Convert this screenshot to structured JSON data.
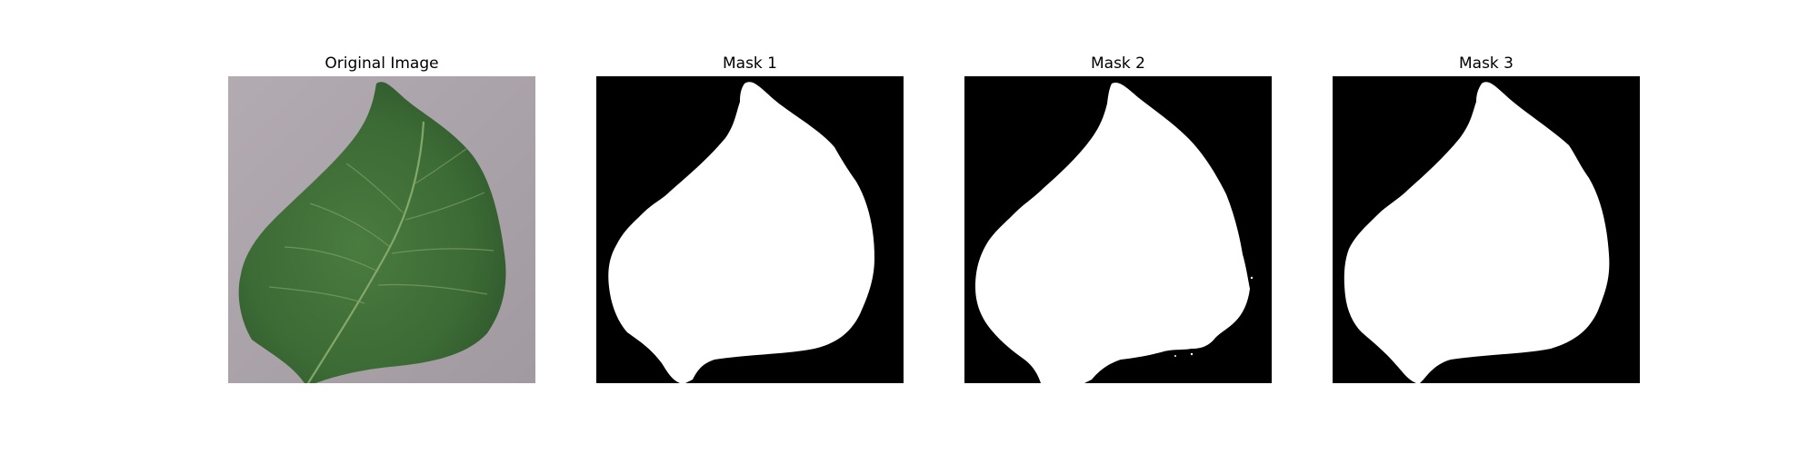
{
  "figure": {
    "panels": [
      {
        "title": "Original Image",
        "kind": "photo"
      },
      {
        "title": "Mask 1",
        "kind": "mask"
      },
      {
        "title": "Mask 2",
        "kind": "mask"
      },
      {
        "title": "Mask 3",
        "kind": "mask"
      }
    ]
  },
  "colors": {
    "background": "#ffffff",
    "mask_background": "#000000",
    "mask_foreground": "#ffffff",
    "photo_background": "#a9a2a8",
    "leaf_dark": "#2f5a2e",
    "leaf_mid": "#3f7138",
    "leaf_vein": "#8fb172"
  }
}
